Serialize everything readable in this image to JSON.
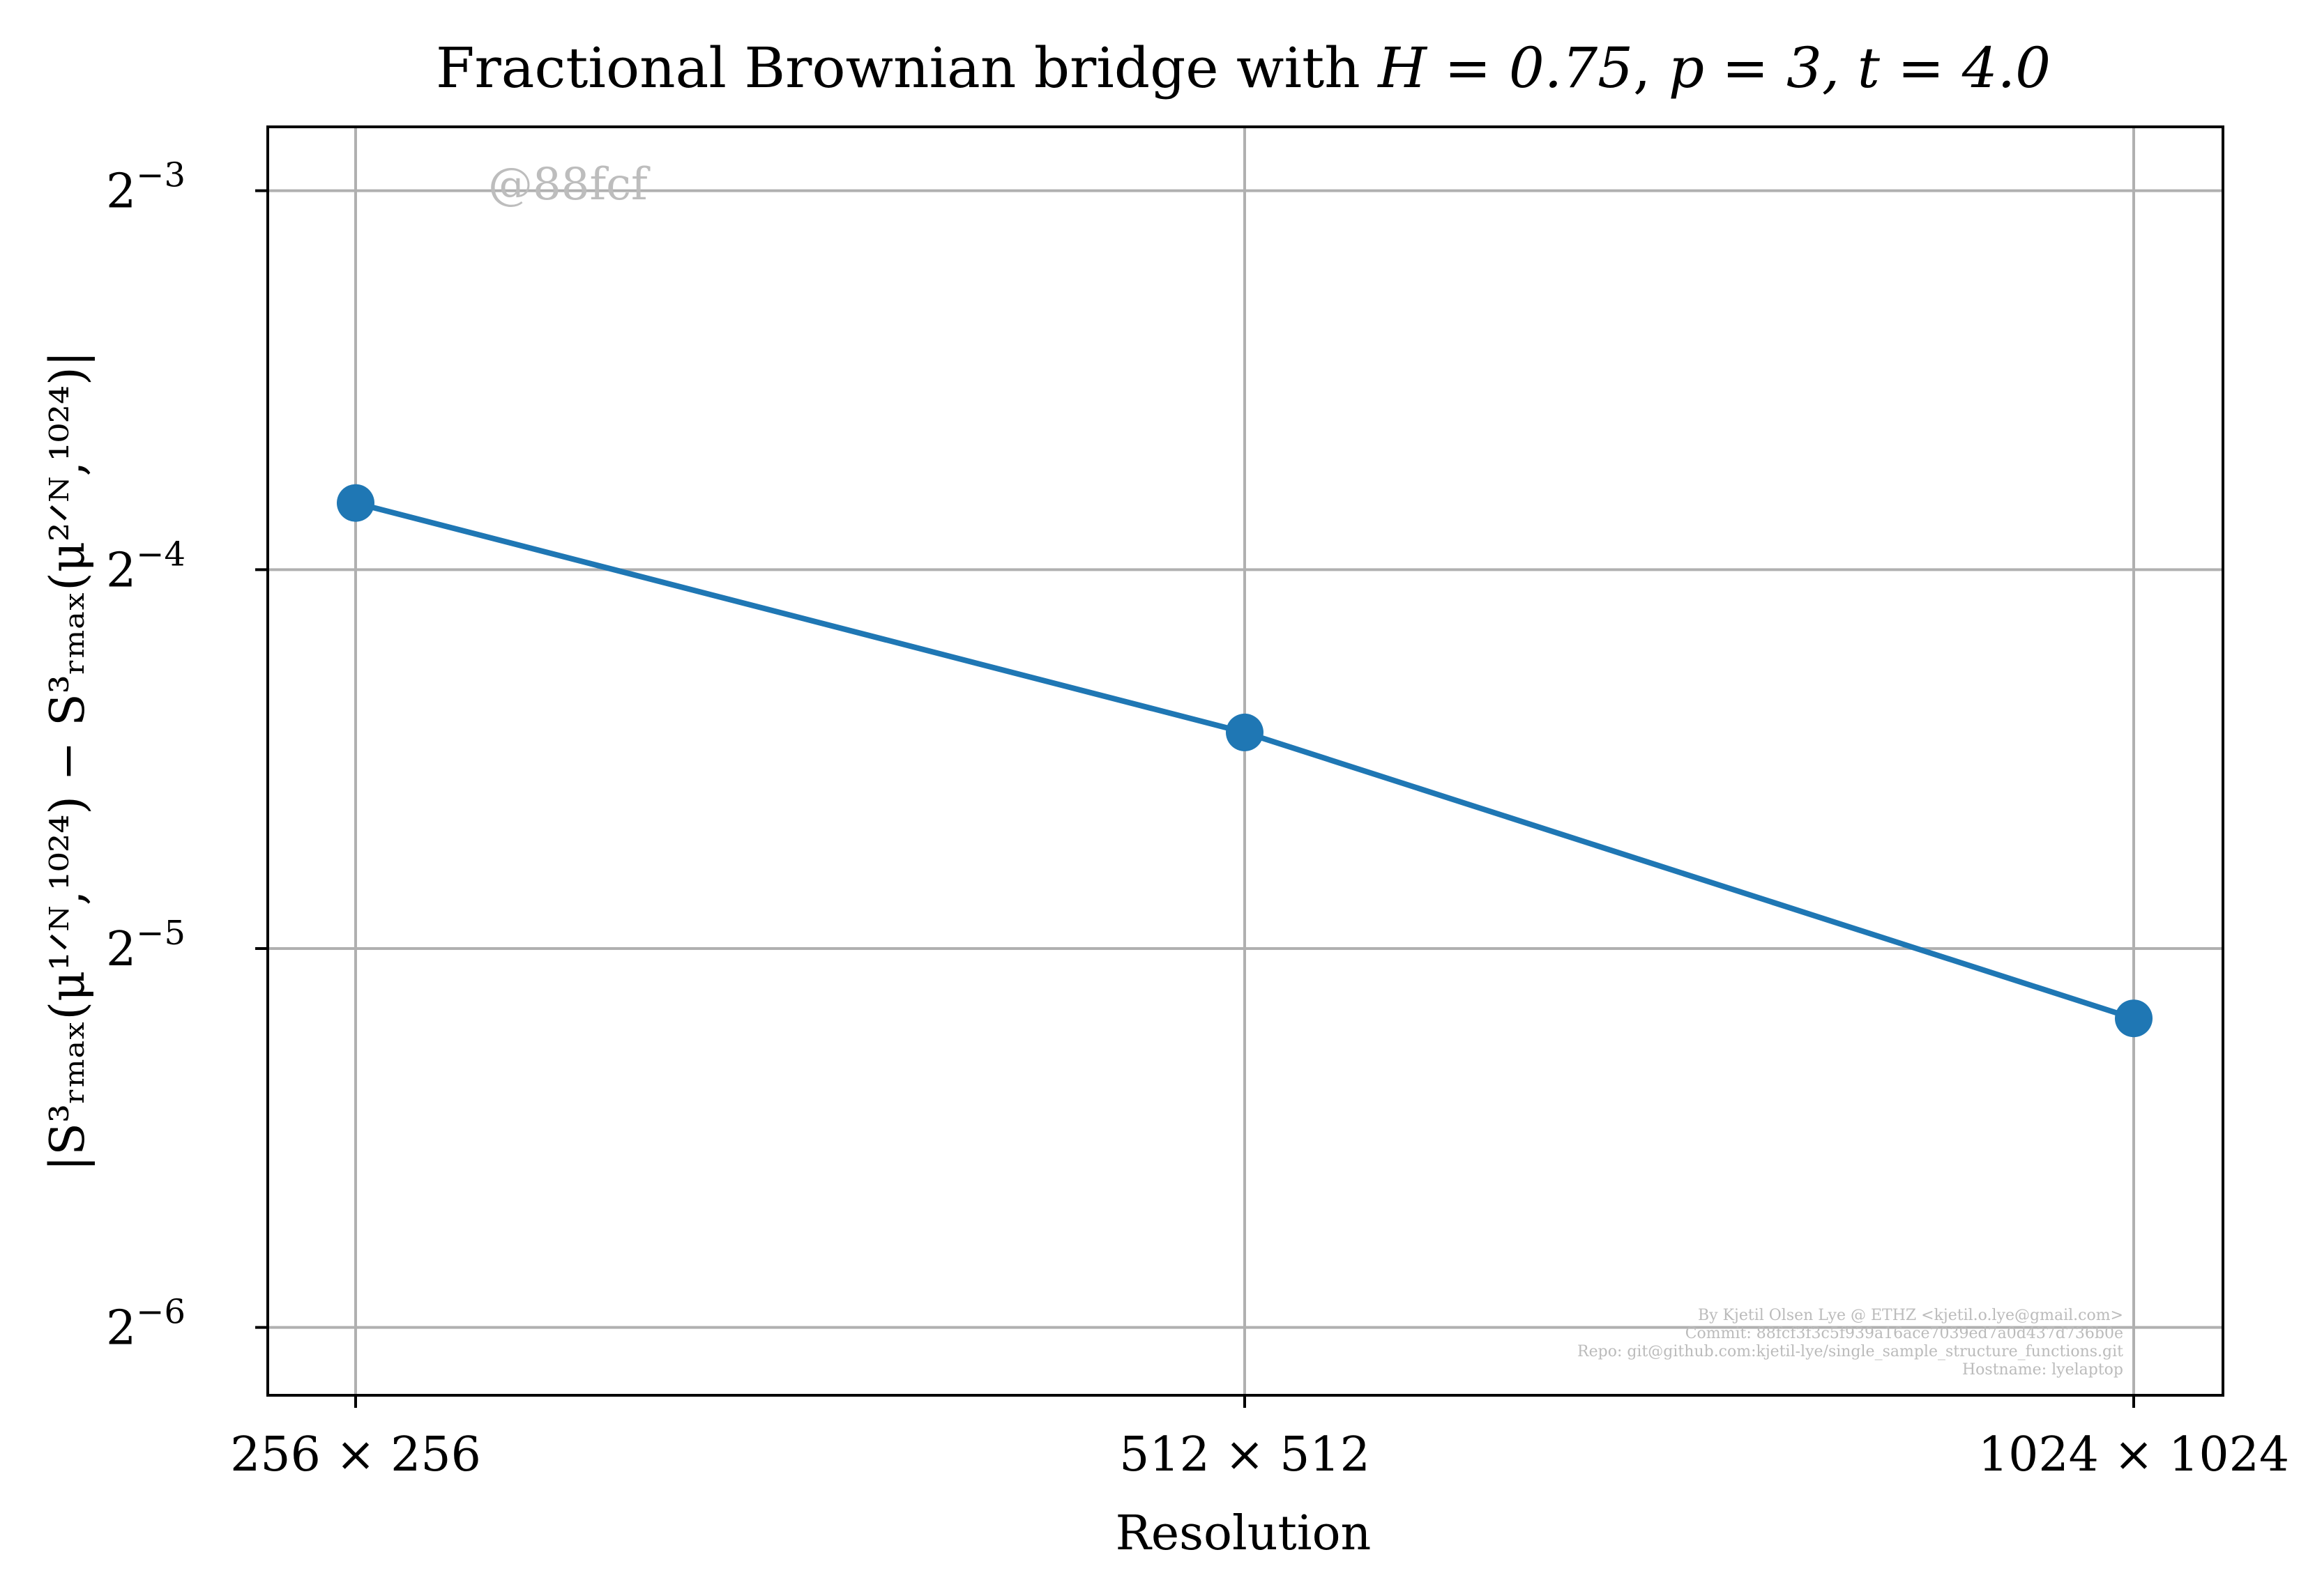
{
  "chart_data": {
    "type": "line",
    "title": {
      "prefix": "Fractional Brownian bridge with ",
      "math1": "H = 0.75",
      "sep": ", ",
      "math2": "p = 3, t = 4.0"
    },
    "xlabel": "Resolution",
    "ylabel": "|S³ᵣₘₐₓ(μ¹ᐟᴺ,¹⁰²⁴) − S³ᵣₘₐₓ(μ²ᐟᴺ,¹⁰²⁴)|",
    "categories": [
      "256 × 256",
      "512 × 512",
      "1024 × 1024"
    ],
    "y_scale": "log2",
    "ylim": [
      0.0138,
      0.1405
    ],
    "y_ticks": [
      {
        "value": 0.125,
        "base": "2",
        "exp": "−3"
      },
      {
        "value": 0.0625,
        "base": "2",
        "exp": "−4"
      },
      {
        "value": 0.03125,
        "base": "2",
        "exp": "−5"
      },
      {
        "value": 0.015625,
        "base": "2",
        "exp": "−6"
      }
    ],
    "grid": true,
    "series": [
      {
        "values": [
          0.0706,
          0.0464,
          0.0275
        ],
        "color": "#1f77b4"
      }
    ],
    "annotations": {
      "watermark": "@88fcf",
      "credits": [
        "By Kjetil Olsen Lye @ ETHZ <kjetil.o.lye@gmail.com>",
        "Commit: 88fcf3f3c5f939a16ace7039ed7a0d437d736b0e",
        "Repo: git@github.com:kjetil-lye/single_sample_structure_functions.git",
        "Hostname: lyelaptop"
      ]
    }
  }
}
